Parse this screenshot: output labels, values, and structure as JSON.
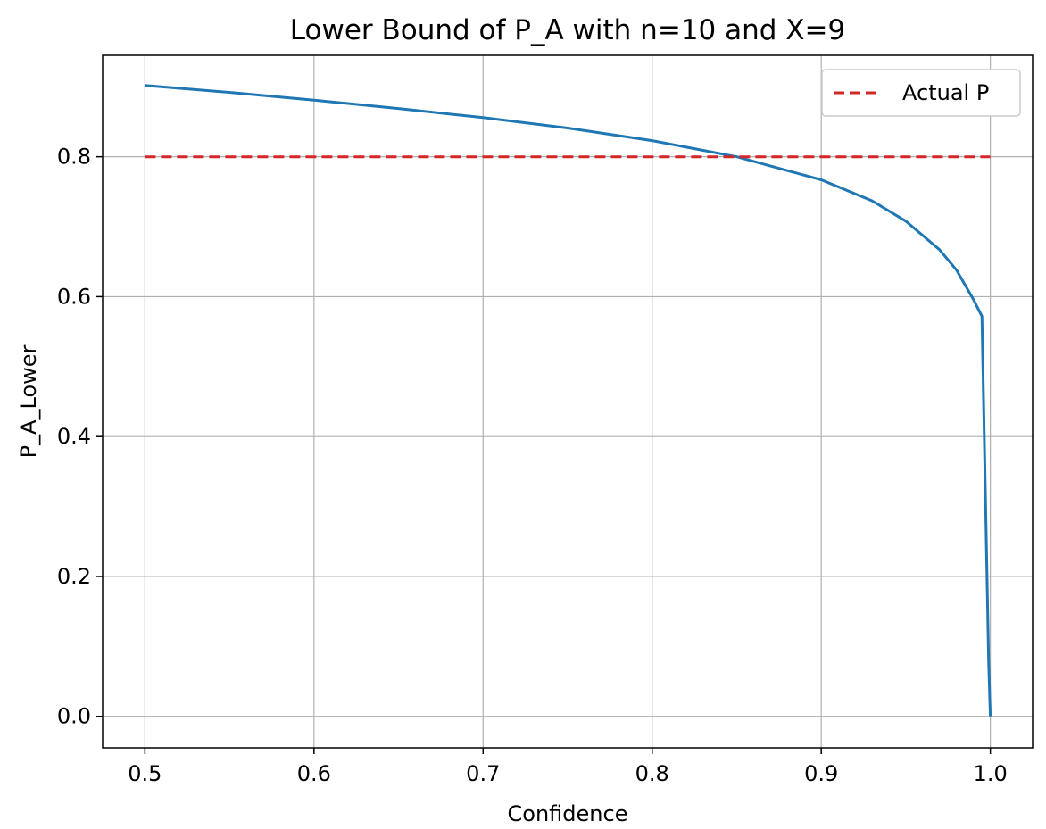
{
  "chart_data": {
    "type": "line",
    "title": "Lower Bound of P_A with n=10 and X=9",
    "xlabel": "Confidence",
    "ylabel": "P_A_Lower",
    "xlim": [
      0.475,
      1.025
    ],
    "ylim": [
      -0.045,
      0.945
    ],
    "grid": true,
    "legend": {
      "placement": "top-right",
      "entries": [
        "Actual P"
      ]
    },
    "x_ticks": [
      "0.5",
      "0.6",
      "0.7",
      "0.8",
      "0.9",
      "1.0"
    ],
    "y_ticks": [
      "0.0",
      "0.2",
      "0.4",
      "0.6",
      "0.8"
    ],
    "series": [
      {
        "label": "",
        "color": "#1f77b4",
        "style": "solid",
        "x": [
          0.5,
          0.55,
          0.6,
          0.65,
          0.7,
          0.75,
          0.8,
          0.85,
          0.9,
          0.93,
          0.95,
          0.97,
          0.98,
          0.99,
          0.995,
          0.999,
          1.0
        ],
        "y": [
          0.902,
          0.892,
          0.881,
          0.869,
          0.856,
          0.841,
          0.823,
          0.8,
          0.767,
          0.737,
          0.708,
          0.667,
          0.638,
          0.596,
          0.572,
          0.08,
          0.0
        ]
      },
      {
        "name": "Actual P",
        "color": "#d62728",
        "style": "dashed",
        "x": [
          0.5,
          1.0
        ],
        "y": [
          0.8,
          0.8
        ]
      }
    ]
  }
}
